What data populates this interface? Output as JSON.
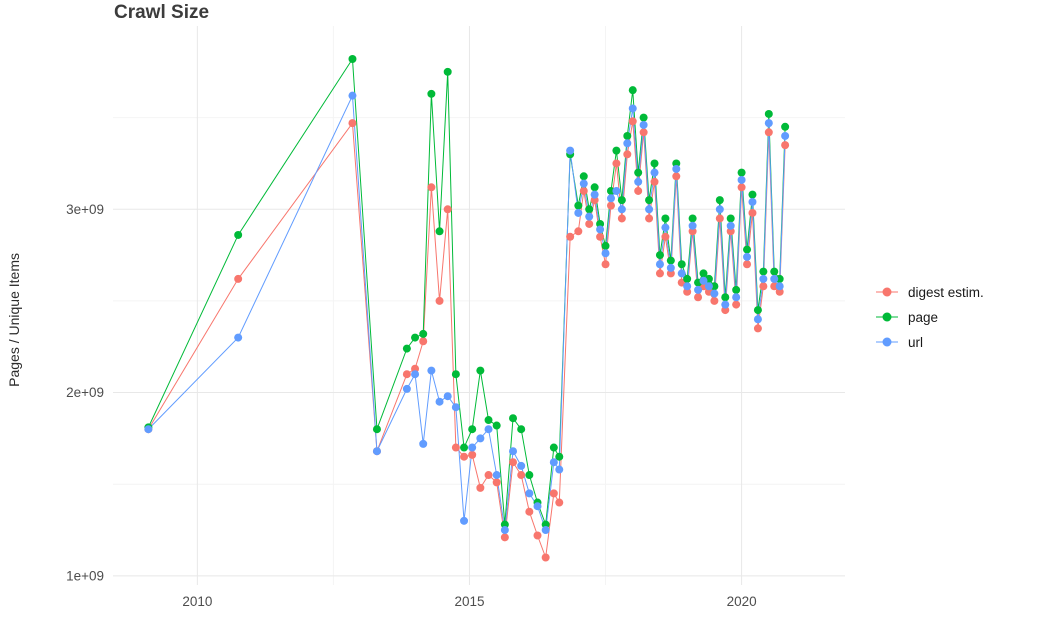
{
  "chart_data": {
    "type": "line",
    "title": "Crawl Size",
    "xlabel": "",
    "ylabel": "Pages / Unique Items",
    "value_unit": "1e+09",
    "legend_position": "right",
    "grid": true,
    "x_axis": {
      "domain": [
        2008.45,
        2021.9
      ],
      "ticks": [
        {
          "value": 2010,
          "label": "2010"
        },
        {
          "value": 2015,
          "label": "2015"
        },
        {
          "value": 2020,
          "label": "2020"
        }
      ],
      "minor_ticks": [
        2012.5,
        2017.5
      ]
    },
    "y_axis": {
      "domain": [
        0.95,
        4.0
      ],
      "ticks": [
        {
          "value": 1,
          "label": "1e+09"
        },
        {
          "value": 2,
          "label": "2e+09"
        },
        {
          "value": 3,
          "label": "3e+09"
        }
      ],
      "minor_ticks": [
        1.5,
        2.5,
        3.5
      ]
    },
    "x": [
      2009.1,
      2010.75,
      2012.85,
      2013.3,
      2013.85,
      2014.0,
      2014.15,
      2014.3,
      2014.45,
      2014.6,
      2014.75,
      2014.9,
      2015.05,
      2015.2,
      2015.35,
      2015.5,
      2015.65,
      2015.8,
      2015.95,
      2016.1,
      2016.25,
      2016.4,
      2016.55,
      2016.65,
      2016.85,
      2017.0,
      2017.1,
      2017.2,
      2017.3,
      2017.4,
      2017.5,
      2017.6,
      2017.7,
      2017.8,
      2017.9,
      2018.0,
      2018.1,
      2018.2,
      2018.3,
      2018.4,
      2018.5,
      2018.6,
      2018.7,
      2018.8,
      2018.9,
      2019.0,
      2019.1,
      2019.2,
      2019.3,
      2019.4,
      2019.5,
      2019.6,
      2019.7,
      2019.8,
      2019.9,
      2020.0,
      2020.1,
      2020.2,
      2020.3,
      2020.4,
      2020.5,
      2020.6,
      2020.7,
      2020.8
    ],
    "series": [
      {
        "name": "digest estim.",
        "key": "digest-estim",
        "color": "#F8766D",
        "values": [
          1.8,
          2.62,
          3.47,
          1.68,
          2.1,
          2.13,
          2.28,
          3.12,
          2.5,
          3.0,
          1.7,
          1.65,
          1.66,
          1.48,
          1.55,
          1.51,
          1.21,
          1.62,
          1.55,
          1.35,
          1.22,
          1.1,
          1.45,
          1.4,
          2.85,
          2.88,
          3.1,
          2.92,
          3.05,
          2.85,
          2.7,
          3.02,
          3.25,
          2.95,
          3.3,
          3.48,
          3.1,
          3.42,
          2.95,
          3.15,
          2.65,
          2.85,
          2.65,
          3.18,
          2.6,
          2.55,
          2.88,
          2.52,
          2.58,
          2.55,
          2.5,
          2.95,
          2.45,
          2.88,
          2.48,
          3.12,
          2.7,
          2.98,
          2.35,
          2.58,
          3.42,
          2.58,
          2.55,
          3.35
        ]
      },
      {
        "name": "page",
        "key": "page",
        "color": "#00BA38",
        "values": [
          1.81,
          2.86,
          3.82,
          1.8,
          2.24,
          2.3,
          2.32,
          3.63,
          2.88,
          3.75,
          2.1,
          1.7,
          1.8,
          2.12,
          1.85,
          1.82,
          1.28,
          1.86,
          1.8,
          1.55,
          1.4,
          1.28,
          1.7,
          1.65,
          3.3,
          3.02,
          3.18,
          3.0,
          3.12,
          2.92,
          2.8,
          3.1,
          3.32,
          3.05,
          3.4,
          3.65,
          3.2,
          3.5,
          3.05,
          3.25,
          2.75,
          2.95,
          2.72,
          3.25,
          2.7,
          2.62,
          2.95,
          2.6,
          2.65,
          2.62,
          2.58,
          3.05,
          2.52,
          2.95,
          2.56,
          3.2,
          2.78,
          3.08,
          2.45,
          2.66,
          3.52,
          2.66,
          2.62,
          3.45
        ]
      },
      {
        "name": "url",
        "key": "url",
        "color": "#619CFF",
        "values": [
          1.8,
          2.3,
          3.62,
          1.68,
          2.02,
          2.1,
          1.72,
          2.12,
          1.95,
          1.98,
          1.92,
          1.3,
          1.7,
          1.75,
          1.8,
          1.55,
          1.25,
          1.68,
          1.6,
          1.45,
          1.38,
          1.25,
          1.62,
          1.58,
          3.32,
          2.98,
          3.14,
          2.96,
          3.08,
          2.89,
          2.76,
          3.06,
          3.1,
          3.0,
          3.36,
          3.55,
          3.15,
          3.46,
          3.0,
          3.2,
          2.7,
          2.9,
          2.68,
          3.22,
          2.65,
          2.58,
          2.91,
          2.56,
          2.61,
          2.58,
          2.54,
          3.0,
          2.48,
          2.91,
          2.52,
          3.16,
          2.74,
          3.04,
          2.4,
          2.62,
          3.47,
          2.62,
          2.58,
          3.4
        ]
      }
    ]
  },
  "style": {
    "major_grid_color": "#e8e8e8",
    "minor_grid_color": "#f4f4f4",
    "tick_label_color": "#4d4d4d"
  }
}
